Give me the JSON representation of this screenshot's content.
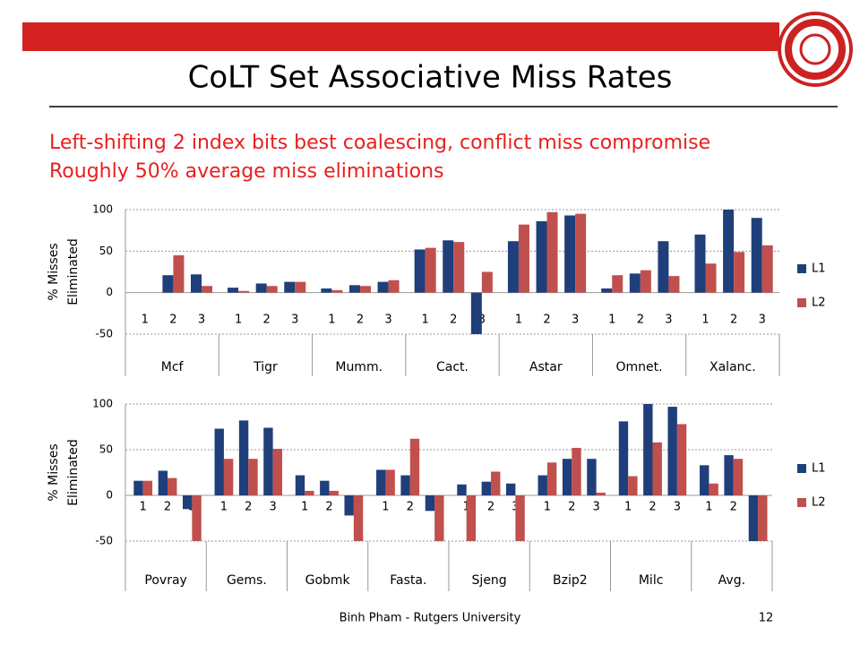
{
  "slide": {
    "title": "CoLT Set Associative Miss Rates",
    "bullets": [
      "Left-shifting 2 index bits best coalescing, conflict miss compromise",
      "Roughly 50% average miss eliminations"
    ],
    "footer": "Binh Pham - Rutgers University",
    "page": "12"
  },
  "chart_data": [
    {
      "type": "bar",
      "ylabel_lines": [
        "% Misses",
        "Eliminated"
      ],
      "groups": [
        "Mcf",
        "Tigr",
        "Mumm.",
        "Cact.",
        "Astar",
        "Omnet.",
        "Xalanc."
      ],
      "subcategories": [
        "1",
        "2",
        "3"
      ],
      "series": [
        {
          "name": "L1",
          "color": "#1f3f7a",
          "values": [
            0,
            21,
            22,
            6,
            11,
            13,
            5,
            9,
            13,
            52,
            63,
            -50,
            62,
            86,
            93,
            5,
            23,
            62,
            70,
            100,
            90
          ]
        },
        {
          "name": "L2",
          "color": "#c0504d",
          "values": [
            0,
            45,
            8,
            2,
            8,
            13,
            3,
            8,
            15,
            54,
            61,
            25,
            82,
            97,
            95,
            21,
            27,
            20,
            35,
            49,
            57
          ]
        }
      ],
      "ylim": [
        -50,
        100
      ],
      "yticks": [
        -50,
        0,
        50,
        100
      ],
      "grid": true,
      "legend": "right"
    },
    {
      "type": "bar",
      "ylabel_lines": [
        "% Misses",
        "Eliminated"
      ],
      "groups": [
        "Povray",
        "Gems.",
        "Gobmk",
        "Fasta.",
        "Sjeng",
        "Bzip2",
        "Milc",
        "Avg."
      ],
      "subcategories": [
        "1",
        "2",
        "3"
      ],
      "series": [
        {
          "name": "L1",
          "color": "#1f3f7a",
          "values": [
            16,
            27,
            -15,
            73,
            82,
            74,
            22,
            16,
            -22,
            28,
            22,
            -17,
            12,
            15,
            13,
            22,
            40,
            40,
            81,
            100,
            97,
            33,
            44,
            -50
          ]
        },
        {
          "name": "L2",
          "color": "#c0504d",
          "values": [
            16,
            19,
            -50,
            40,
            40,
            51,
            5,
            5,
            -50,
            28,
            62,
            -50,
            -50,
            26,
            -50,
            36,
            52,
            3,
            21,
            58,
            78,
            13,
            40,
            -50
          ]
        }
      ],
      "ylim": [
        -50,
        100
      ],
      "yticks": [
        -50,
        0,
        50,
        100
      ],
      "grid": true,
      "legend": "right"
    }
  ]
}
